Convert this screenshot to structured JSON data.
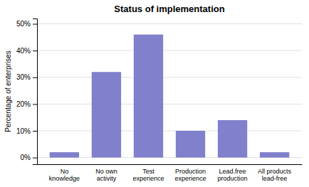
{
  "chart_data": {
    "type": "bar",
    "title": "Status of implementation",
    "categories": [
      "No\nknowledge",
      "No own\nactivity",
      "Test\nexperience",
      "Production\nexperience",
      "Lead.free\nproduction",
      "All products\nlead-free"
    ],
    "values": [
      2,
      32,
      46,
      10,
      14,
      2
    ],
    "color": "#8080cc",
    "ylabel": "Percentage of enterprises",
    "ylim": [
      -2.5,
      52
    ],
    "yticks": [
      {
        "value": 0,
        "label": "0%"
      },
      {
        "value": 10,
        "label": "10%"
      },
      {
        "value": 20,
        "label": "20%"
      },
      {
        "value": 30,
        "label": "30%"
      },
      {
        "value": 40,
        "label": "40%"
      },
      {
        "value": 50,
        "label": "50%"
      }
    ],
    "grid": true
  }
}
